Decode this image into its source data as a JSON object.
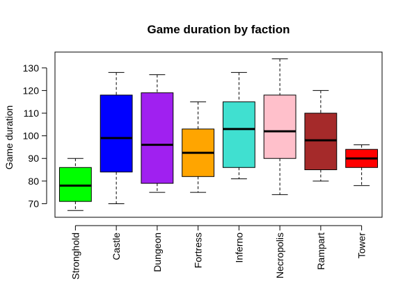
{
  "chart_data": {
    "type": "box",
    "title": "Game duration by faction",
    "xlabel": "",
    "ylabel": "Game duration",
    "ylim": [
      64,
      137
    ],
    "yticks": [
      70,
      80,
      90,
      100,
      110,
      120,
      130
    ],
    "grid": false,
    "categories": [
      "Stronghold",
      "Castle",
      "Dungeon",
      "Fortress",
      "Inferno",
      "Necropolis",
      "Rampart",
      "Tower"
    ],
    "boxes": [
      {
        "name": "Stronghold",
        "color": "#00FF00",
        "min": 67,
        "q1": 71,
        "median": 78,
        "q3": 86,
        "max": 90
      },
      {
        "name": "Castle",
        "color": "#0000FF",
        "min": 70,
        "q1": 84,
        "median": 99,
        "q3": 118,
        "max": 128
      },
      {
        "name": "Dungeon",
        "color": "#A020F0",
        "min": 75,
        "q1": 79,
        "median": 96,
        "q3": 119,
        "max": 127
      },
      {
        "name": "Fortress",
        "color": "#FFA500",
        "min": 75,
        "q1": 82,
        "median": 92.5,
        "q3": 103,
        "max": 115
      },
      {
        "name": "Inferno",
        "color": "#40E0D0",
        "min": 81,
        "q1": 86,
        "median": 103,
        "q3": 115,
        "max": 128
      },
      {
        "name": "Necropolis",
        "color": "#FFC0CB",
        "min": 74,
        "q1": 90,
        "median": 102,
        "q3": 118,
        "max": 134
      },
      {
        "name": "Rampart",
        "color": "#A52A2A",
        "min": 80,
        "q1": 85,
        "median": 98,
        "q3": 110,
        "max": 120
      },
      {
        "name": "Tower",
        "color": "#FF0000",
        "min": 78,
        "q1": 86,
        "median": 90,
        "q3": 94,
        "max": 96
      }
    ]
  }
}
